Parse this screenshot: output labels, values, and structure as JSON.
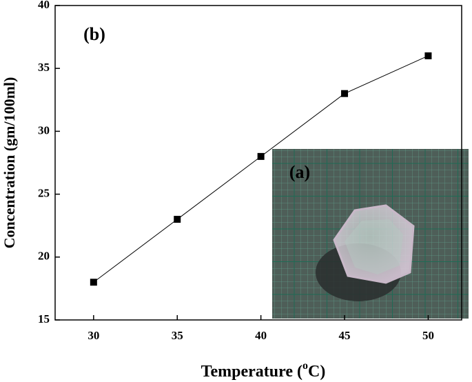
{
  "chart_data": {
    "type": "line",
    "x_label_parts": [
      "Temperature (",
      "o",
      "C)"
    ],
    "ylabel": "Concentration (gm/100ml)",
    "annotations": [
      "(b)",
      "(a)"
    ],
    "x": [
      30,
      35,
      40,
      45,
      50
    ],
    "series": [
      {
        "color": "#000000",
        "values": [
          18,
          23,
          28,
          33,
          36
        ]
      }
    ],
    "xlim": [
      27.7,
      52
    ],
    "xticks": [
      30,
      35,
      40,
      45,
      50
    ],
    "ylim": [
      15,
      40
    ],
    "yticks": [
      15,
      20,
      25,
      30,
      35,
      40
    ],
    "grid": false
  }
}
